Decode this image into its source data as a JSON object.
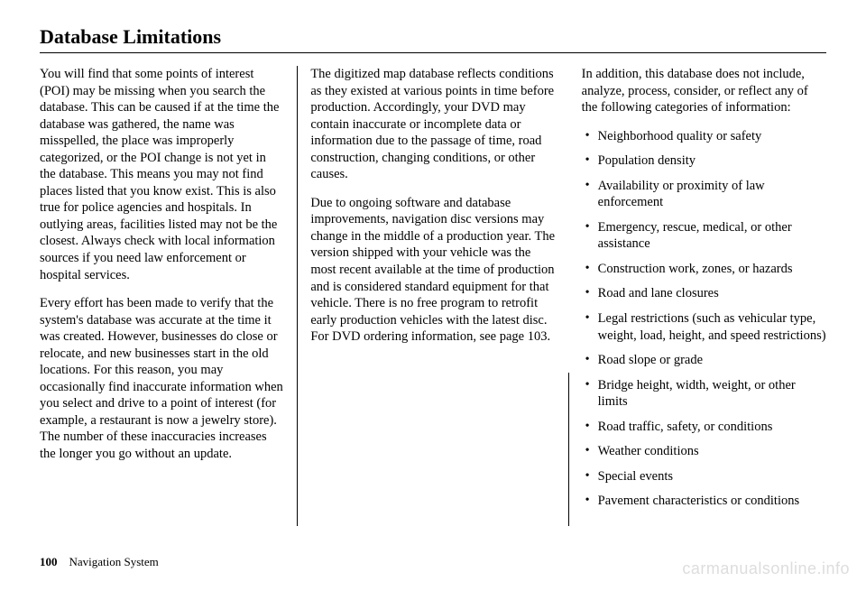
{
  "title": "Database Limitations",
  "col1": {
    "p1": "You will find that some points of interest (POI) may be missing when you search the database. This can be caused if at the time the database was gathered, the name was misspelled, the place was improperly categorized, or the POI change is not yet in the database. This means you may not find places listed that you know exist. This is also true for police agencies and hospitals. In outlying areas, facilities listed may not be the closest. Always check with local information sources if you need law enforcement or hospital services.",
    "p2": "Every effort has been made to verify that the system's database was accurate at the time it was created. However, businesses do close or relocate, and new businesses start in the old locations. For this reason, you may occasionally find inaccurate information when you select and drive to a point of interest (for example, a restaurant is now a jewelry store). The number of these inaccuracies increases the longer you go without an update."
  },
  "col2": {
    "p1": "The digitized map database reflects conditions as they existed at various points in time before production. Accordingly, your DVD may contain inaccurate or incomplete data or information due to the passage of time, road construction, changing conditions, or other causes.",
    "p2": "Due to ongoing software and database improvements, navigation disc versions may change in the middle of a production year.  The version shipped with your vehicle was the most recent available at the time of production and is considered standard equipment for that vehicle.  There is no free program to retrofit early production vehicles with the latest disc. For DVD ordering information, see page 103."
  },
  "col3": {
    "intro": "In addition, this database does not include, analyze, process, consider, or reflect any of the following categories of information:",
    "items": [
      "Neighborhood quality or safety",
      "Population density",
      "Availability or proximity of law enforcement",
      "Emergency, rescue, medical, or other assistance",
      "Construction work, zones, or hazards",
      "Road and lane closures",
      "Legal restrictions (such as vehicular type, weight, load, height, and speed restrictions)",
      "Road slope or grade",
      "Bridge height, width, weight, or other limits",
      "Road traffic, safety, or conditions",
      "Weather conditions",
      "Special events",
      "Pavement characteristics or conditions"
    ]
  },
  "footer": {
    "pagenum": "100",
    "section": "Navigation System"
  },
  "watermark": "carmanualsonline.info"
}
